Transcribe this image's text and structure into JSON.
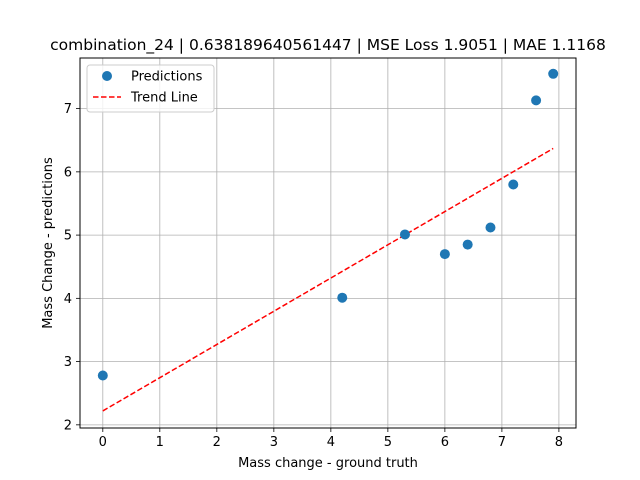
{
  "chart_data": {
    "type": "scatter",
    "title": "combination_24 | 0.638189640561447 | MSE Loss 1.9051 | MAE 1.1168",
    "xlabel": "Mass change - ground truth",
    "ylabel": "Mass Change - predictions",
    "xlim": [
      -0.4,
      8.3
    ],
    "ylim": [
      1.95,
      7.8
    ],
    "xticks": [
      0,
      1,
      2,
      3,
      4,
      5,
      6,
      7,
      8
    ],
    "xtick_labels": [
      "0",
      "1",
      "2",
      "3",
      "4",
      "5",
      "6",
      "7",
      "8"
    ],
    "yticks": [
      2,
      3,
      4,
      5,
      6,
      7
    ],
    "ytick_labels": [
      "2",
      "3",
      "4",
      "5",
      "6",
      "7"
    ],
    "grid": true,
    "legend_position": "top-left",
    "series": [
      {
        "name": "Predictions",
        "type": "scatter",
        "color": "#1f77b4",
        "x": [
          0.0,
          4.2,
          5.3,
          6.0,
          6.4,
          6.8,
          7.2,
          7.6,
          7.9
        ],
        "y": [
          2.78,
          4.01,
          5.01,
          4.7,
          4.85,
          5.12,
          5.8,
          7.13,
          7.55
        ]
      },
      {
        "name": "Trend Line",
        "type": "line",
        "style": "dashed",
        "color": "#ff0000",
        "x": [
          0.0,
          7.9
        ],
        "y": [
          2.22,
          6.37
        ]
      }
    ]
  }
}
